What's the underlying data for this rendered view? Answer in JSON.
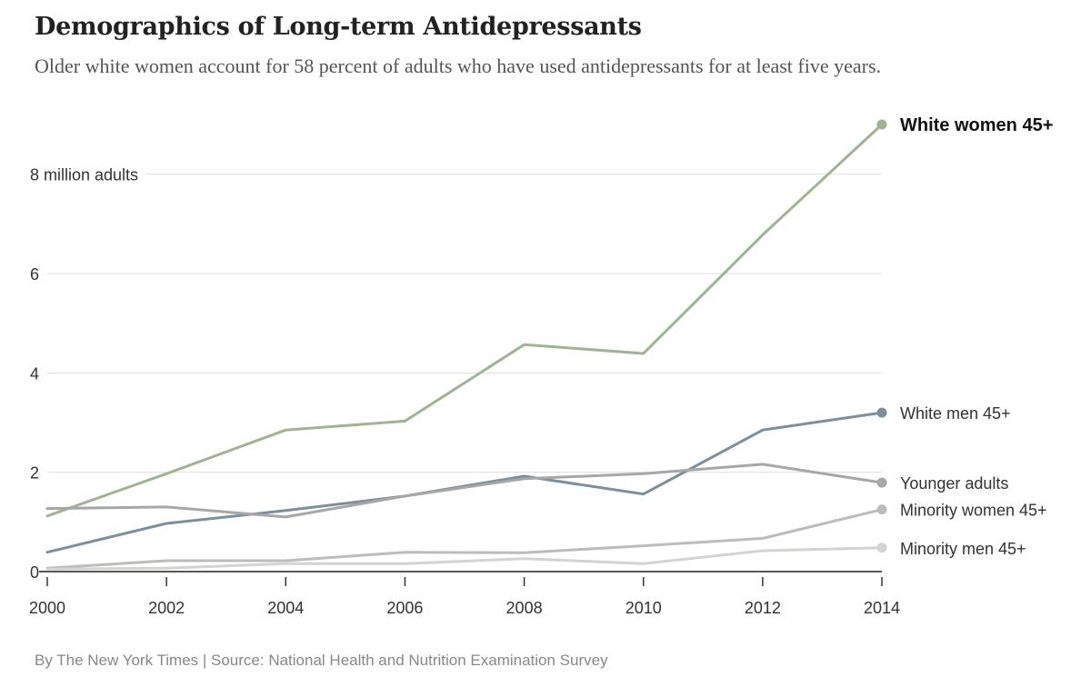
{
  "header": {
    "title": "Demographics of Long-term Antidepressants",
    "subtitle": "Older white women account for 58 percent of adults who have used antidepressants for at least five years."
  },
  "footer": {
    "source": "By The New York Times | Source: National Health and Nutrition Examination Survey"
  },
  "chart_data": {
    "type": "line",
    "title": "Demographics of Long-term Antidepressants",
    "subtitle": "Older white women account for 58 percent of adults who have used antidepressants for at least five years.",
    "xlabel": "",
    "ylabel": "million adults",
    "x": [
      2000,
      2002,
      2004,
      2006,
      2008,
      2010,
      2012,
      2014
    ],
    "x_tick_labels": [
      "2000",
      "2002",
      "2004",
      "2006",
      "2008",
      "2010",
      "2012",
      "2014"
    ],
    "ylim": [
      0,
      9
    ],
    "y_ticks": [
      0,
      2,
      4,
      6,
      8
    ],
    "y_tick_labels": [
      "0",
      "2",
      "4",
      "6",
      "8 million adults"
    ],
    "grid": true,
    "legend": "end-of-line labels, right",
    "series": [
      {
        "name": "White women 45+",
        "color": "#9fb491",
        "bold": true,
        "values": [
          1.12,
          1.97,
          2.85,
          3.03,
          4.57,
          4.39,
          6.78,
          9.0
        ]
      },
      {
        "name": "White men 45+",
        "color": "#7a909e",
        "bold": false,
        "values": [
          0.39,
          0.97,
          1.23,
          1.52,
          1.92,
          1.56,
          2.85,
          3.2
        ]
      },
      {
        "name": "Younger adults",
        "color": "#a8a6a6",
        "bold": false,
        "values": [
          1.27,
          1.3,
          1.1,
          1.52,
          1.87,
          1.97,
          2.16,
          1.79
        ]
      },
      {
        "name": "Minority women 45+",
        "color": "#bcbcbc",
        "bold": false,
        "values": [
          0.07,
          0.22,
          0.22,
          0.39,
          0.38,
          0.52,
          0.67,
          1.25
        ]
      },
      {
        "name": "Minority men 45+",
        "color": "#d3d3cf",
        "bold": false,
        "values": [
          0.05,
          0.07,
          0.16,
          0.16,
          0.26,
          0.16,
          0.42,
          0.48
        ]
      }
    ]
  }
}
